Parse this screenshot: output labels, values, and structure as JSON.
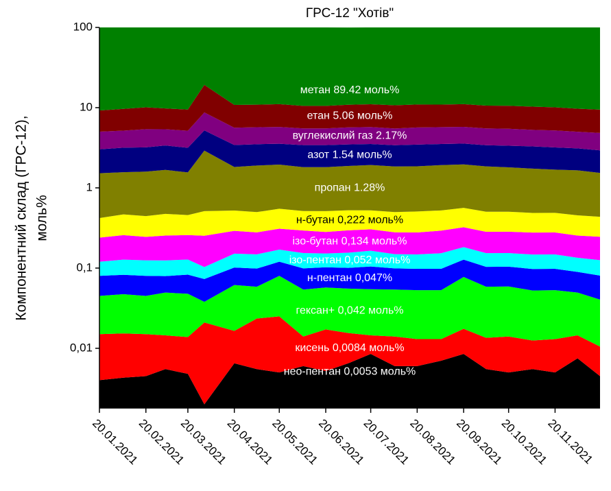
{
  "chart_data": {
    "type": "stacked_area",
    "title": "ГРС-12 \"Хотів\"",
    "y_label": [
      "Компонентний склад (ГРС-12),",
      "моль%"
    ],
    "log_y": true,
    "ylim": [
      0.0018,
      100
    ],
    "yticks": [
      {
        "value": 0.01,
        "label": "0,01"
      },
      {
        "value": 0.1,
        "label": "0,1"
      },
      1,
      10,
      100
    ],
    "xlim": [
      "20.01.2021",
      "20.12.2021"
    ],
    "xticks": [
      "20.01.2021",
      "20.02.2021",
      "20.03.2021",
      "20.04.2021",
      "20.05.2021",
      "20.06.2021",
      "20.07.2021",
      "20.08.2021",
      "20.09.2021",
      "20.10.2021",
      "20.11.2021"
    ],
    "x": [
      "20.01.2021",
      "05.02.2021",
      "20.02.2021",
      "05.03.2021",
      "20.03.2021",
      "31.03.2021",
      "20.04.2021",
      "05.05.2021",
      "20.05.2021",
      "05.06.2021",
      "20.06.2021",
      "05.07.2021",
      "20.07.2021",
      "05.08.2021",
      "20.08.2021",
      "05.09.2021",
      "20.09.2021",
      "05.10.2021",
      "20.10.2021",
      "05.11.2021",
      "20.11.2021",
      "05.12.2021",
      "20.12.2021"
    ],
    "series": [
      {
        "name": "нео-пентан 0,0053 моль%",
        "color": "#000000",
        "label_color": "#ffffff",
        "values": [
          0.004,
          0.0043,
          0.0045,
          0.0055,
          0.0048,
          0.002,
          0.0065,
          0.0055,
          0.005,
          0.006,
          0.0052,
          0.0065,
          0.0085,
          0.006,
          0.006,
          0.007,
          0.0085,
          0.0055,
          0.005,
          0.0055,
          0.005,
          0.0075,
          0.0045
        ]
      },
      {
        "name": "кисень 0,0084 моль%",
        "color": "#ff0000",
        "label_color": "#ffffff",
        "values": [
          0.011,
          0.011,
          0.0105,
          0.009,
          0.009,
          0.019,
          0.01,
          0.018,
          0.02,
          0.008,
          0.012,
          0.009,
          0.006,
          0.008,
          0.007,
          0.006,
          0.009,
          0.008,
          0.009,
          0.007,
          0.008,
          0.007,
          0.006
        ]
      },
      {
        "name": "гексан+ 0,042 моль%",
        "color": "#00ff00",
        "label_color": "#ffffff",
        "values": [
          0.03,
          0.032,
          0.03,
          0.035,
          0.034,
          0.017,
          0.045,
          0.035,
          0.055,
          0.04,
          0.04,
          0.04,
          0.04,
          0.04,
          0.04,
          0.04,
          0.06,
          0.045,
          0.045,
          0.04,
          0.04,
          0.035,
          0.03
        ]
      },
      {
        "name": "н-пентан 0,047%",
        "color": "#0000ff",
        "label_color": "#ffffff",
        "values": [
          0.035,
          0.035,
          0.035,
          0.03,
          0.035,
          0.035,
          0.04,
          0.04,
          0.04,
          0.045,
          0.045,
          0.045,
          0.05,
          0.045,
          0.045,
          0.045,
          0.05,
          0.045,
          0.045,
          0.045,
          0.045,
          0.04,
          0.04
        ]
      },
      {
        "name": "ізо-пентан 0,052 моль%",
        "color": "#00ffff",
        "label_color": "#ffffff",
        "values": [
          0.04,
          0.045,
          0.045,
          0.045,
          0.045,
          0.03,
          0.05,
          0.05,
          0.05,
          0.055,
          0.05,
          0.055,
          0.06,
          0.05,
          0.05,
          0.055,
          0.055,
          0.05,
          0.05,
          0.05,
          0.05,
          0.045,
          0.045
        ]
      },
      {
        "name": "ізо-бутан 0,134 моль%",
        "color": "#ff00ff",
        "label_color": "#ffffff",
        "values": [
          0.12,
          0.13,
          0.12,
          0.13,
          0.13,
          0.15,
          0.14,
          0.13,
          0.14,
          0.14,
          0.13,
          0.14,
          0.14,
          0.13,
          0.13,
          0.14,
          0.14,
          0.13,
          0.13,
          0.13,
          0.13,
          0.12,
          0.12
        ]
      },
      {
        "name": "н-бутан 0,222 моль%",
        "color": "#ffff00",
        "label_color": "#000000",
        "values": [
          0.18,
          0.21,
          0.2,
          0.22,
          0.2,
          0.26,
          0.23,
          0.22,
          0.24,
          0.22,
          0.23,
          0.23,
          0.22,
          0.22,
          0.23,
          0.23,
          0.24,
          0.22,
          0.22,
          0.21,
          0.21,
          0.2,
          0.19
        ]
      },
      {
        "name": "пропан 1.28%",
        "color": "#808000",
        "label_color": "#ffffff",
        "values": [
          1.1,
          1.1,
          1.15,
          1.2,
          1.1,
          2.4,
          1.3,
          1.4,
          1.4,
          1.3,
          1.3,
          1.35,
          1.4,
          1.35,
          1.35,
          1.4,
          1.4,
          1.35,
          1.3,
          1.25,
          1.2,
          1.2,
          1.1
        ]
      },
      {
        "name": "азот 1.54 моль%",
        "color": "#000080",
        "label_color": "#ffffff",
        "values": [
          1.5,
          1.6,
          1.6,
          1.7,
          1.6,
          2.3,
          1.6,
          1.6,
          1.6,
          1.6,
          1.6,
          1.6,
          1.6,
          1.55,
          1.6,
          1.6,
          1.6,
          1.55,
          1.55,
          1.55,
          1.5,
          1.45,
          1.4
        ]
      },
      {
        "name": "вуглекислий газ 2.17%",
        "color": "#800080",
        "label_color": "#ffffff",
        "values": [
          2.0,
          2.0,
          2.2,
          2.0,
          2.0,
          3.5,
          2.2,
          2.2,
          2.2,
          2.1,
          2.1,
          2.2,
          2.2,
          2.1,
          2.2,
          2.2,
          2.2,
          2.1,
          2.1,
          2.0,
          2.0,
          1.9,
          1.9
        ]
      },
      {
        "name": "етан 5.06 моль%",
        "color": "#800000",
        "label_color": "#ffffff",
        "values": [
          4.2,
          4.5,
          4.7,
          4.4,
          4.3,
          10.5,
          5.2,
          5.2,
          5.3,
          5.0,
          5.0,
          5.2,
          5.3,
          5.2,
          5.3,
          5.2,
          5.3,
          5.1,
          5.1,
          5.0,
          4.9,
          4.7,
          4.6
        ]
      },
      {
        "name": "метан 89.42 моль%",
        "color": "#008000",
        "label_color": "#ffffff",
        "values": [
          90.8,
          90.4,
          90,
          90.2,
          90.5,
          80.8,
          89.4,
          89.1,
          89,
          89.4,
          89.4,
          89,
          89,
          89.3,
          89,
          89.1,
          89,
          89.4,
          89.5,
          89.7,
          89.9,
          90.3,
          90.6
        ]
      }
    ]
  }
}
